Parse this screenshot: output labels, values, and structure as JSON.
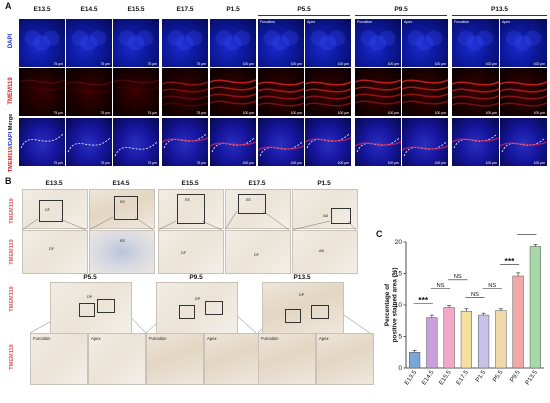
{
  "panels": {
    "a": {
      "letter": "A"
    },
    "b": {
      "letter": "B"
    },
    "c": {
      "letter": "C"
    }
  },
  "panel_a": {
    "col_labels": [
      "E13.5",
      "E14.5",
      "E15.5",
      "E17.5",
      "P1.5",
      "P5.5",
      "P9.5",
      "P13.5"
    ],
    "row_labels": [
      "DAPI",
      "TMEM119",
      "TMEM119/DAPI Merge"
    ],
    "sub_labels": {
      "furcation": "Furcation",
      "apex": "Apex"
    },
    "scale_75": "75 μm",
    "scale_100": "100 μm",
    "colors": {
      "dapi_label": "#1f2fd6",
      "tmem_label": "#d42020"
    }
  },
  "panel_b": {
    "top_cols": [
      "E13.5",
      "E14.5",
      "E15.5",
      "E17.5",
      "P1.5"
    ],
    "bottom_cols": [
      "P5.5",
      "P9.5",
      "P13.5"
    ],
    "row_label": "TMEM119",
    "sub_labels": {
      "furcation": "Furcation",
      "apex": "Apex"
    },
    "tissue_labels": {
      "df": "DF",
      "pr": "PR",
      "ab": "AB",
      "dp": "DP",
      "ee": "EE",
      "cl": "CL"
    },
    "colors": {
      "row_label": "#d65a5a"
    }
  },
  "chart_data": {
    "type": "bar",
    "categories": [
      "E13.5",
      "E14.5",
      "E15.5",
      "E17.5",
      "P1.5",
      "P5.5",
      "P9.5",
      "P13.5"
    ],
    "values": [
      2.5,
      8.0,
      9.6,
      9.0,
      8.4,
      9.1,
      14.6,
      19.3
    ],
    "colors": [
      "#7aa6d8",
      "#c9a0dc",
      "#f2a8c8",
      "#f6e0a0",
      "#c7c3e8",
      "#f0d8a8",
      "#f2a8a8",
      "#a8d8a8"
    ],
    "errors": [
      0.3,
      0.4,
      0.3,
      0.4,
      0.3,
      0.3,
      0.5,
      0.3
    ],
    "ylabel": "Percentage of positive stained area (%)",
    "ylim": [
      0,
      20
    ],
    "yticks": [
      "0",
      "5",
      "10",
      "15",
      "20"
    ],
    "significance": [
      {
        "from": 0,
        "to": 1,
        "label": "***"
      },
      {
        "from": 1,
        "to": 2,
        "label": "NS"
      },
      {
        "from": 2,
        "to": 3,
        "label": "NS"
      },
      {
        "from": 3,
        "to": 4,
        "label": "NS"
      },
      {
        "from": 4,
        "to": 5,
        "label": "NS"
      },
      {
        "from": 5,
        "to": 6,
        "label": "***"
      },
      {
        "from": 6,
        "to": 7,
        "label": "***"
      }
    ]
  }
}
